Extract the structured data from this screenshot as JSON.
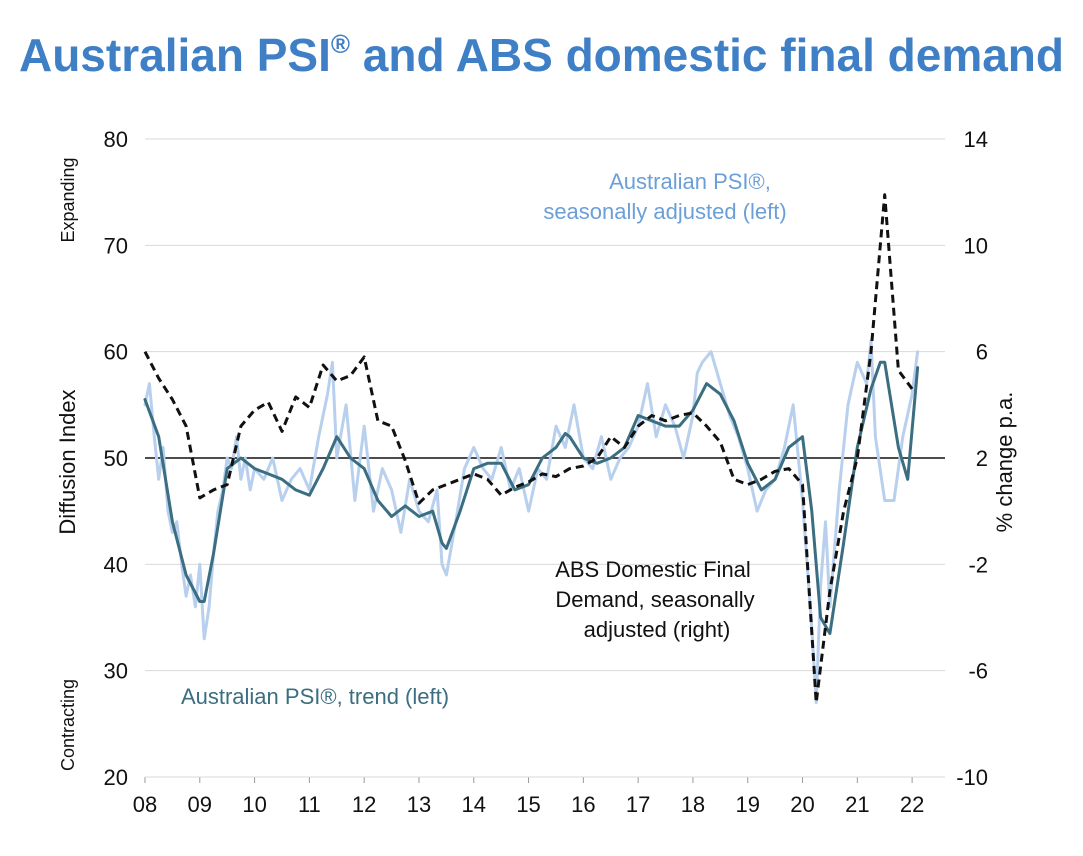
{
  "title": {
    "main": "Australian PSI",
    "reg": "®",
    "rest": " and ABS domestic final demand"
  },
  "chart_data": {
    "type": "line",
    "title": "Australian PSI® and ABS domestic final demand",
    "x_tick_labels": [
      "08",
      "09",
      "10",
      "11",
      "12",
      "13",
      "14",
      "15",
      "16",
      "17",
      "18",
      "19",
      "20",
      "21",
      "22"
    ],
    "x_range": [
      2008.0,
      2022.6
    ],
    "ylabel_left": "Diffusion Index",
    "ylabel_right": "% change p.a.",
    "ylim_left": [
      20,
      80
    ],
    "ylim_right": [
      -10,
      14
    ],
    "y_ticks_left": [
      20,
      30,
      40,
      50,
      60,
      70,
      80
    ],
    "y_ticks_right": [
      -10,
      -6,
      -2,
      2,
      6,
      10,
      14
    ],
    "reference_line_left": 50,
    "left_side_labels": {
      "top": "Expanding",
      "bottom": "Contracting"
    },
    "grid": true,
    "annotations": {
      "sa_line1": "Australian PSI®,",
      "sa_line2": "seasonally adjusted (left)",
      "dfd_line1": "ABS Domestic Final",
      "dfd_line2": "Demand, seasonally",
      "dfd_line3": "adjusted (right)",
      "trend": "Australian PSI®, trend (left)"
    },
    "series": [
      {
        "name": "Australian PSI®, seasonally adjusted (left)",
        "axis": "left",
        "color": "#b8d0ee",
        "style": "solid",
        "x": [
          2008.0,
          2008.08,
          2008.17,
          2008.25,
          2008.33,
          2008.42,
          2008.5,
          2008.58,
          2008.67,
          2008.75,
          2008.83,
          2008.92,
          2009.0,
          2009.08,
          2009.17,
          2009.25,
          2009.33,
          2009.42,
          2009.5,
          2009.58,
          2009.67,
          2009.75,
          2009.83,
          2009.92,
          2010.0,
          2010.17,
          2010.33,
          2010.5,
          2010.67,
          2010.83,
          2011.0,
          2011.17,
          2011.33,
          2011.42,
          2011.5,
          2011.67,
          2011.83,
          2012.0,
          2012.17,
          2012.33,
          2012.5,
          2012.67,
          2012.83,
          2013.0,
          2013.17,
          2013.33,
          2013.42,
          2013.5,
          2013.67,
          2013.83,
          2014.0,
          2014.17,
          2014.33,
          2014.5,
          2014.67,
          2014.83,
          2015.0,
          2015.17,
          2015.33,
          2015.5,
          2015.67,
          2015.83,
          2016.0,
          2016.17,
          2016.33,
          2016.5,
          2016.67,
          2016.83,
          2017.0,
          2017.17,
          2017.33,
          2017.5,
          2017.67,
          2017.83,
          2018.0,
          2018.08,
          2018.17,
          2018.33,
          2018.5,
          2018.67,
          2018.83,
          2019.0,
          2019.17,
          2019.33,
          2019.5,
          2019.67,
          2019.83,
          2020.0,
          2020.17,
          2020.25,
          2020.33,
          2020.42,
          2020.5,
          2020.67,
          2020.83,
          2021.0,
          2021.17,
          2021.25,
          2021.33,
          2021.5,
          2021.67,
          2021.83,
          2022.0,
          2022.1
        ],
        "values": [
          55,
          57,
          52,
          48,
          51,
          45,
          43,
          44,
          40,
          37,
          39,
          36,
          40,
          33,
          36,
          41,
          45,
          47,
          50,
          49,
          52,
          48,
          50,
          47,
          49,
          48,
          50,
          46,
          48,
          49,
          47,
          52,
          56,
          59,
          50,
          55,
          46,
          53,
          45,
          49,
          47,
          43,
          48,
          45,
          44,
          47,
          40,
          39,
          44,
          49,
          51,
          49,
          48,
          51,
          47,
          49,
          45,
          49,
          48,
          53,
          51,
          55,
          50,
          49,
          52,
          48,
          50,
          51,
          53,
          57,
          52,
          55,
          53,
          50,
          54,
          58,
          59,
          60,
          57,
          54,
          52,
          49,
          45,
          47,
          48,
          51,
          55,
          46,
          34,
          27,
          38,
          44,
          36,
          47,
          55,
          59,
          57,
          61,
          52,
          46,
          46,
          52,
          56,
          60
        ]
      },
      {
        "name": "Australian PSI®, trend (left)",
        "axis": "left",
        "color": "#3a6e80",
        "style": "solid",
        "x": [
          2008.0,
          2008.25,
          2008.5,
          2008.75,
          2009.0,
          2009.08,
          2009.25,
          2009.5,
          2009.75,
          2010.0,
          2010.25,
          2010.5,
          2010.75,
          2011.0,
          2011.25,
          2011.5,
          2011.75,
          2012.0,
          2012.25,
          2012.5,
          2012.75,
          2013.0,
          2013.25,
          2013.42,
          2013.5,
          2013.75,
          2014.0,
          2014.25,
          2014.5,
          2014.75,
          2015.0,
          2015.25,
          2015.5,
          2015.67,
          2015.75,
          2016.0,
          2016.25,
          2016.5,
          2016.75,
          2017.0,
          2017.25,
          2017.5,
          2017.75,
          2018.0,
          2018.25,
          2018.5,
          2018.75,
          2019.0,
          2019.25,
          2019.5,
          2019.75,
          2020.0,
          2020.17,
          2020.33,
          2020.5,
          2020.75,
          2021.0,
          2021.25,
          2021.42,
          2021.5,
          2021.75,
          2021.92,
          2022.1
        ],
        "values": [
          55.5,
          52,
          44,
          39,
          36.5,
          36.5,
          41,
          49,
          50,
          49,
          48.5,
          48,
          47,
          46.5,
          49,
          52,
          50,
          49,
          46,
          44.5,
          45.5,
          44.5,
          45,
          42,
          41.5,
          45,
          49,
          49.5,
          49.5,
          47,
          47.5,
          50,
          51,
          52.3,
          52,
          50,
          49.5,
          50,
          51,
          54,
          53.5,
          53,
          53,
          54.5,
          57,
          56,
          53.5,
          49.5,
          47,
          48,
          51,
          52,
          45,
          35,
          33.5,
          42,
          51,
          56.5,
          59,
          59,
          51,
          48,
          58.5
        ]
      },
      {
        "name": "ABS Domestic Final Demand, seasonally adjusted (right)",
        "axis": "right",
        "color": "#111111",
        "style": "dashed",
        "x": [
          2008.0,
          2008.25,
          2008.5,
          2008.75,
          2009.0,
          2009.25,
          2009.5,
          2009.75,
          2010.0,
          2010.25,
          2010.5,
          2010.75,
          2011.0,
          2011.25,
          2011.5,
          2011.75,
          2012.0,
          2012.25,
          2012.5,
          2012.75,
          2013.0,
          2013.25,
          2013.5,
          2013.75,
          2014.0,
          2014.25,
          2014.5,
          2014.75,
          2015.0,
          2015.25,
          2015.5,
          2015.75,
          2016.0,
          2016.25,
          2016.5,
          2016.75,
          2017.0,
          2017.25,
          2017.5,
          2017.75,
          2018.0,
          2018.25,
          2018.5,
          2018.75,
          2019.0,
          2019.25,
          2019.5,
          2019.75,
          2020.0,
          2020.25,
          2020.5,
          2020.75,
          2021.0,
          2021.25,
          2021.5,
          2021.75,
          2022.0
        ],
        "values": [
          6,
          5,
          4.2,
          3.2,
          0.5,
          0.8,
          1.0,
          3.2,
          3.8,
          4.1,
          3.0,
          4.3,
          3.9,
          5.5,
          4.9,
          5.1,
          5.8,
          3.4,
          3.2,
          1.9,
          0.3,
          0.8,
          1.0,
          1.2,
          1.4,
          1.2,
          0.6,
          0.9,
          1.1,
          1.4,
          1.3,
          1.6,
          1.7,
          2.0,
          2.8,
          2.4,
          3.2,
          3.6,
          3.4,
          3.6,
          3.7,
          3.2,
          2.6,
          1.2,
          1.0,
          1.2,
          1.5,
          1.6,
          1.0,
          -7.2,
          -3,
          0,
          2.0,
          6.0,
          11.9,
          5.3,
          4.6
        ]
      }
    ]
  }
}
